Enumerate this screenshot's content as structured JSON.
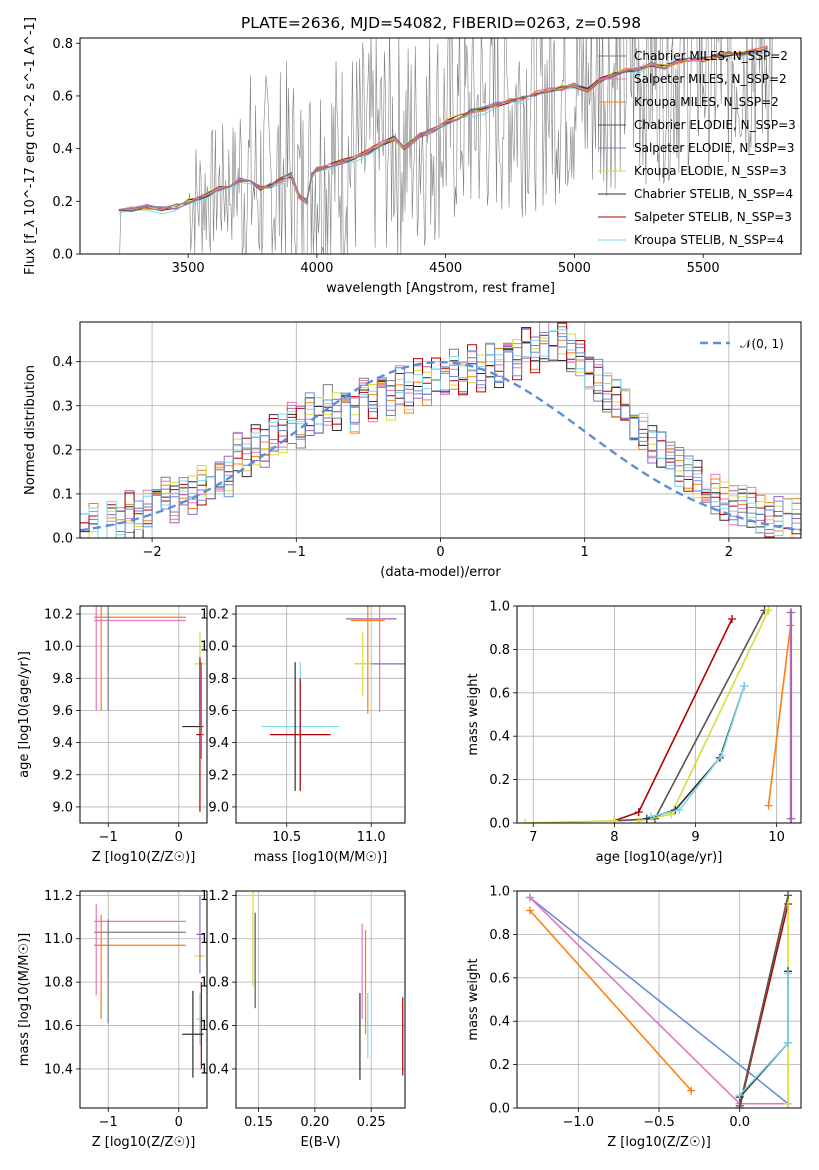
{
  "figure": {
    "title": "PLATE=2636, MJD=54082, FIBERID=0263, z=0.598"
  },
  "series_styles": [
    {
      "name": "Chabrier MILES, N_SSP=2",
      "color": "#7f7f7f"
    },
    {
      "name": "Salpeter MILES, N_SSP=2",
      "color": "#e377c2"
    },
    {
      "name": "Kroupa MILES, N_SSP=2",
      "color": "#ff7f0e"
    },
    {
      "name": "Chabrier ELODIE, N_SSP=3",
      "color": "#555555"
    },
    {
      "name": "Salpeter ELODIE, N_SSP=3",
      "color": "#9467bd"
    },
    {
      "name": "Kroupa ELODIE, N_SSP=3",
      "color": "#dbdb3d"
    },
    {
      "name": "Chabrier STELIB, N_SSP=4",
      "color": "#2f2f2f"
    },
    {
      "name": "Salpeter STELIB, N_SSP=3",
      "color": "#b40000"
    },
    {
      "name": "Kroupa STELIB, N_SSP=4",
      "color": "#7fd7e8"
    }
  ],
  "chart_data": [
    {
      "id": "spectrum",
      "type": "line",
      "title": "PLATE=2636, MJD=54082, FIBERID=0263, z=0.598",
      "xlabel": "wavelength [Angstrom, rest frame]",
      "ylabel": "Flux [f_λ 10^-17 erg cm^-2 s^-1 A^-1]",
      "xlim": [
        3080,
        5880
      ],
      "ylim": [
        0,
        0.82
      ],
      "xticks": [
        "3500",
        "4000",
        "4500",
        "5000",
        "5500"
      ],
      "yticks": [
        "0.0",
        "0.2",
        "0.4",
        "0.6",
        "0.8"
      ],
      "grid": false,
      "legend_position": "top-right",
      "legend": [
        "Chabrier MILES, N_SSP=2",
        "Salpeter MILES, N_SSP=2",
        "Kroupa MILES, N_SSP=2",
        "Chabrier ELODIE, N_SSP=3",
        "Salpeter ELODIE, N_SSP=3",
        "Kroupa ELODIE, N_SSP=3",
        "Chabrier STELIB, N_SSP=4",
        "Salpeter STELIB, N_SSP=3",
        "Kroupa STELIB, N_SSP=4"
      ],
      "model_x": [
        3230,
        3280,
        3340,
        3400,
        3450,
        3500,
        3540,
        3580,
        3620,
        3660,
        3700,
        3740,
        3780,
        3820,
        3860,
        3900,
        3930,
        3960,
        3980,
        4000,
        4050,
        4100,
        4150,
        4200,
        4250,
        4300,
        4340,
        4400,
        4450,
        4500,
        4550,
        4600,
        4650,
        4700,
        4750,
        4800,
        4850,
        4900,
        4950,
        5000,
        5050,
        5100,
        5150,
        5200,
        5250,
        5300,
        5350,
        5400,
        5450,
        5500,
        5550,
        5600,
        5650,
        5700,
        5750
      ],
      "model_y": [
        0.16,
        0.17,
        0.18,
        0.17,
        0.18,
        0.2,
        0.21,
        0.23,
        0.25,
        0.26,
        0.28,
        0.27,
        0.25,
        0.26,
        0.28,
        0.3,
        0.22,
        0.2,
        0.3,
        0.32,
        0.34,
        0.35,
        0.37,
        0.39,
        0.42,
        0.44,
        0.4,
        0.45,
        0.47,
        0.5,
        0.52,
        0.54,
        0.55,
        0.57,
        0.58,
        0.59,
        0.61,
        0.62,
        0.63,
        0.64,
        0.62,
        0.66,
        0.68,
        0.7,
        0.7,
        0.72,
        0.71,
        0.73,
        0.74,
        0.74,
        0.75,
        0.76,
        0.76,
        0.77,
        0.78
      ],
      "data_start_x": 3230,
      "noise_start_x": 3500
    },
    {
      "id": "residuals",
      "type": "histogram",
      "xlabel": "(data-model)/error",
      "ylabel": "Normed distribution",
      "xlim": [
        -2.5,
        2.5
      ],
      "ylim": [
        0,
        0.49
      ],
      "xticks": [
        "−2",
        "−1",
        "0",
        "1",
        "2"
      ],
      "yticks": [
        "0.0",
        "0.1",
        "0.2",
        "0.3",
        "0.4"
      ],
      "grid": true,
      "legend_position": "top-right",
      "legend": [
        "𝒩(0, 1)"
      ],
      "bin_width": 0.1,
      "bin_start": -2.5,
      "gaussian_mean": 0,
      "gaussian_sigma": 1,
      "base_hist": [
        0.02,
        0.03,
        0.02,
        0.04,
        0.03,
        0.06,
        0.04,
        0.07,
        0.06,
        0.09,
        0.08,
        0.11,
        0.1,
        0.12,
        0.11,
        0.15,
        0.14,
        0.19,
        0.18,
        0.21,
        0.2,
        0.23,
        0.24,
        0.26,
        0.25,
        0.28,
        0.27,
        0.3,
        0.29,
        0.31,
        0.28,
        0.33,
        0.3,
        0.34,
        0.31,
        0.35,
        0.33,
        0.36,
        0.34,
        0.37,
        0.34,
        0.38,
        0.36,
        0.39,
        0.37,
        0.4,
        0.38,
        0.42,
        0.4,
        0.44,
        0.42,
        0.45,
        0.43,
        0.44,
        0.42,
        0.4,
        0.38,
        0.36,
        0.33,
        0.31,
        0.29,
        0.26,
        0.24,
        0.22,
        0.2,
        0.18,
        0.16,
        0.14,
        0.13,
        0.11,
        0.1,
        0.09,
        0.08,
        0.07,
        0.07,
        0.06,
        0.05,
        0.05,
        0.04,
        0.04,
        0.03
      ]
    },
    {
      "id": "age-vs-Z",
      "type": "errorbar",
      "xlabel": "Z [log10(Z/Z☉)]",
      "ylabel": "age  [log10(age/yr)]",
      "xlim": [
        -1.4,
        0.4
      ],
      "ylim": [
        8.9,
        10.25
      ],
      "xticks": [
        "−1",
        "0"
      ],
      "yticks": [
        "9.0",
        "9.2",
        "9.4",
        "9.6",
        "9.8",
        "10.0",
        "10.2"
      ],
      "grid": true,
      "points": [
        {
          "x": -0.55,
          "y": 10.18,
          "xerr": 0.65,
          "yerr": 0.0,
          "c": 2
        },
        {
          "x": -0.55,
          "y": 10.16,
          "xerr": 0.65,
          "yerr": 0.0,
          "c": 1
        },
        {
          "x": -1.17,
          "y": 10.16,
          "xerr": 0.0,
          "yerr": 0.56,
          "c": 1
        },
        {
          "x": -1.1,
          "y": 10.16,
          "xerr": 0.0,
          "yerr": 0.56,
          "c": 2
        },
        {
          "x": -1.0,
          "y": 10.16,
          "xerr": 0.0,
          "yerr": 0.56,
          "c": 0
        },
        {
          "x": 0.3,
          "y": 9.89,
          "xerr": 0.08,
          "yerr": 0.2,
          "c": 5
        },
        {
          "x": 0.3,
          "y": 9.7,
          "xerr": 0.0,
          "yerr": 0.12,
          "c": 8
        },
        {
          "x": 0.2,
          "y": 9.5,
          "xerr": 0.15,
          "yerr": 0.0,
          "c": 6
        },
        {
          "x": 0.3,
          "y": 9.45,
          "xerr": 0.05,
          "yerr": 0.48,
          "c": 7
        },
        {
          "x": 0.32,
          "y": 9.6,
          "xerr": 0.0,
          "yerr": 0.3,
          "c": 4
        }
      ]
    },
    {
      "id": "age-vs-mass",
      "type": "errorbar",
      "xlabel": "mass [log10(M/M☉)]",
      "ylabel": "",
      "xlim": [
        10.2,
        11.2
      ],
      "ylim": [
        8.9,
        10.25
      ],
      "xticks": [
        "10.5",
        "11.0"
      ],
      "yticks": [
        "9.0",
        "9.2",
        "9.4",
        "9.6",
        "9.8",
        "10.0",
        "10.2"
      ],
      "grid": true,
      "points": [
        {
          "x": 11.0,
          "y": 10.17,
          "xerr": 0.15,
          "yerr": 0.0,
          "c": 4
        },
        {
          "x": 10.98,
          "y": 10.16,
          "xerr": 0.1,
          "yerr": 0.58,
          "c": 2
        },
        {
          "x": 11.05,
          "y": 10.17,
          "xerr": 0.0,
          "yerr": 0.58,
          "c": 1
        },
        {
          "x": 11.05,
          "y": 9.89,
          "xerr": 0.15,
          "yerr": 0.0,
          "c": 4
        },
        {
          "x": 10.95,
          "y": 9.89,
          "xerr": 0.05,
          "yerr": 0.2,
          "c": 5
        },
        {
          "x": 10.58,
          "y": 9.5,
          "xerr": 0.23,
          "yerr": 0.4,
          "c": 8
        },
        {
          "x": 10.58,
          "y": 9.45,
          "xerr": 0.18,
          "yerr": 0.35,
          "c": 7
        },
        {
          "x": 10.55,
          "y": 9.5,
          "xerr": 0.0,
          "yerr": 0.4,
          "c": 6
        }
      ]
    },
    {
      "id": "mass-weight-vs-age",
      "type": "line",
      "xlabel": "age  [log10(age/yr)]",
      "ylabel": "mass weight",
      "xlim": [
        6.8,
        10.3
      ],
      "ylim": [
        0,
        1.0
      ],
      "xticks": [
        "7",
        "8",
        "9",
        "10"
      ],
      "yticks": [
        "0.0",
        "0.2",
        "0.4",
        "0.6",
        "0.8",
        "1.0"
      ],
      "grid": true,
      "series": [
        {
          "c": 7,
          "x": [
            8.0,
            8.3,
            9.45
          ],
          "y": [
            0.01,
            0.05,
            0.94
          ]
        },
        {
          "c": 3,
          "x": [
            8.0,
            8.5,
            9.85
          ],
          "y": [
            0.01,
            0.02,
            0.98
          ]
        },
        {
          "c": 5,
          "x": [
            8.3,
            8.7,
            9.9
          ],
          "y": [
            0.01,
            0.04,
            0.98
          ]
        },
        {
          "c": 6,
          "x": [
            8.4,
            8.75,
            9.3,
            9.6
          ],
          "y": [
            0.02,
            0.06,
            0.3,
            0.63
          ]
        },
        {
          "c": 8,
          "x": [
            8.45,
            8.8,
            9.32,
            9.6
          ],
          "y": [
            0.03,
            0.06,
            0.31,
            0.63
          ]
        },
        {
          "c": 2,
          "x": [
            9.9,
            10.17
          ],
          "y": [
            0.08,
            0.91
          ]
        },
        {
          "c": 1,
          "x": [
            10.17,
            10.17
          ],
          "y": [
            0.02,
            0.97
          ]
        },
        {
          "c": 4,
          "x": [
            10.18,
            10.18
          ],
          "y": [
            0.02,
            0.97
          ]
        },
        {
          "c": 5,
          "x": [
            6.9,
            8.0
          ],
          "y": [
            0.0,
            0.01
          ]
        }
      ]
    },
    {
      "id": "mass-vs-Z",
      "type": "errorbar",
      "xlabel": "Z [log10(Z/Z☉)]",
      "ylabel": "mass [log10(M/M☉)]",
      "xlim": [
        -1.4,
        0.4
      ],
      "ylim": [
        10.22,
        11.22
      ],
      "xticks": [
        "−1",
        "0"
      ],
      "yticks": [
        "10.4",
        "10.6",
        "10.8",
        "11.0",
        "11.2"
      ],
      "grid": true,
      "points": [
        {
          "x": -0.55,
          "y": 11.08,
          "xerr": 0.65,
          "yerr": 0.0,
          "c": 1
        },
        {
          "x": -0.55,
          "y": 11.03,
          "xerr": 0.65,
          "yerr": 0.0,
          "c": 0
        },
        {
          "x": -0.55,
          "y": 10.97,
          "xerr": 0.65,
          "yerr": 0.0,
          "c": 2
        },
        {
          "x": -1.17,
          "y": 10.95,
          "xerr": 0.0,
          "yerr": 0.21,
          "c": 1
        },
        {
          "x": -1.1,
          "y": 10.87,
          "xerr": 0.0,
          "yerr": 0.24,
          "c": 2
        },
        {
          "x": -1.0,
          "y": 10.85,
          "xerr": 0.0,
          "yerr": 0.24,
          "c": 0
        },
        {
          "x": 0.3,
          "y": 10.92,
          "xerr": 0.08,
          "yerr": 0.0,
          "c": 5
        },
        {
          "x": 0.3,
          "y": 11.02,
          "xerr": 0.05,
          "yerr": 0.18,
          "c": 4
        },
        {
          "x": 0.3,
          "y": 10.63,
          "xerr": 0.05,
          "yerr": 0.12,
          "c": 8
        },
        {
          "x": 0.2,
          "y": 10.56,
          "xerr": 0.15,
          "yerr": 0.2,
          "c": 6
        },
        {
          "x": 0.32,
          "y": 10.6,
          "xerr": 0.0,
          "yerr": 0.2,
          "c": 7
        }
      ]
    },
    {
      "id": "mass-vs-ebv",
      "type": "errorbar",
      "xlabel": "E(B-V)",
      "ylabel": "",
      "xlim": [
        0.13,
        0.28
      ],
      "ylim": [
        10.22,
        11.22
      ],
      "xticks": [
        "0.15",
        "0.20",
        "0.25"
      ],
      "yticks": [
        "10.4",
        "10.6",
        "10.8",
        "11.0",
        "11.2"
      ],
      "grid": true,
      "points": [
        {
          "x": 0.145,
          "y": 11.0,
          "xerr": 0.0,
          "yerr": 0.22,
          "c": 5
        },
        {
          "x": 0.147,
          "y": 10.9,
          "xerr": 0.0,
          "yerr": 0.22,
          "c": 3
        },
        {
          "x": 0.242,
          "y": 10.85,
          "xerr": 0.0,
          "yerr": 0.22,
          "c": 1
        },
        {
          "x": 0.245,
          "y": 10.8,
          "xerr": 0.0,
          "yerr": 0.24,
          "c": 2
        },
        {
          "x": 0.24,
          "y": 10.55,
          "xerr": 0.0,
          "yerr": 0.2,
          "c": 6
        },
        {
          "x": 0.247,
          "y": 10.6,
          "xerr": 0.0,
          "yerr": 0.15,
          "c": 8
        },
        {
          "x": 0.278,
          "y": 10.55,
          "xerr": 0.0,
          "yerr": 0.18,
          "c": 7
        }
      ]
    },
    {
      "id": "mass-weight-vs-Z",
      "type": "line",
      "xlabel": "Z [log10(Z/Z☉)]",
      "ylabel": "mass weight",
      "xlim": [
        -1.38,
        0.38
      ],
      "ylim": [
        0,
        1.0
      ],
      "xticks": [
        "−1.0",
        "−0.5",
        "0.0"
      ],
      "yticks": [
        "0.0",
        "0.2",
        "0.4",
        "0.6",
        "0.8",
        "1.0"
      ],
      "grid": true,
      "series": [
        {
          "c": 9,
          "x": [
            -1.3,
            0.3
          ],
          "y": [
            0.97,
            0.02
          ]
        },
        {
          "c": 1,
          "x": [
            -1.3,
            0.0,
            0.3
          ],
          "y": [
            0.97,
            0.02,
            0.02
          ]
        },
        {
          "c": 2,
          "x": [
            -1.3,
            -0.3
          ],
          "y": [
            0.91,
            0.08
          ]
        },
        {
          "c": 7,
          "x": [
            0.0,
            0.3
          ],
          "y": [
            0.0,
            0.94
          ]
        },
        {
          "c": 5,
          "x": [
            0.0,
            0.3,
            0.3
          ],
          "y": [
            0.01,
            0.98,
            0.02
          ]
        },
        {
          "c": 3,
          "x": [
            0.0,
            0.3
          ],
          "y": [
            0.01,
            0.98
          ]
        },
        {
          "c": 6,
          "x": [
            0.0,
            0.3,
            0.3
          ],
          "y": [
            0.05,
            0.3,
            0.63
          ]
        },
        {
          "c": 8,
          "x": [
            0.0,
            0.3,
            0.3
          ],
          "y": [
            0.06,
            0.3,
            0.62
          ]
        }
      ]
    }
  ]
}
